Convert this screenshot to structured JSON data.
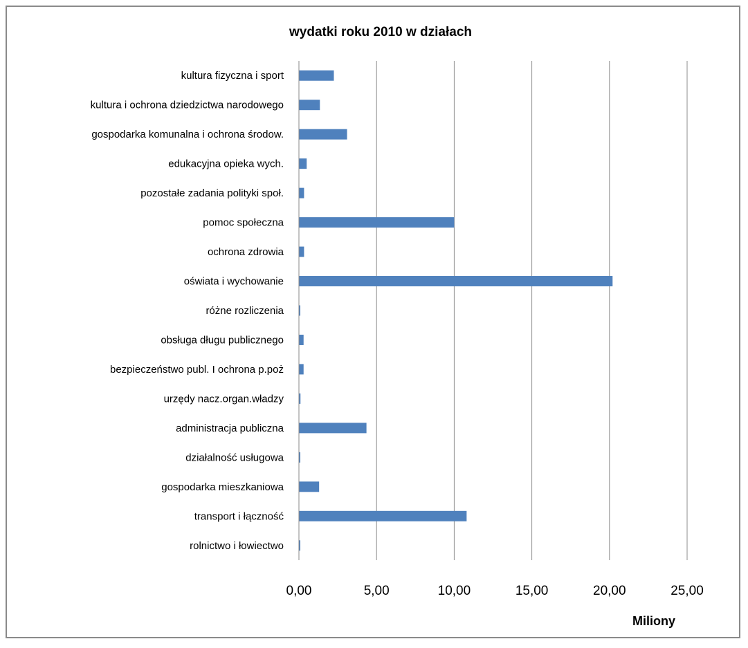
{
  "chart_data": {
    "type": "bar",
    "orientation": "horizontal",
    "title": "wydatki roku 2010 w działach",
    "xlabel": "Miliony",
    "ylabel": "",
    "xlim": [
      0,
      25
    ],
    "xticks": [
      "0,00",
      "5,00",
      "10,00",
      "15,00",
      "20,00",
      "25,00"
    ],
    "grid": "vertical",
    "legend": "none",
    "bar_color": "#4f81bd",
    "categories": [
      "kultura fizyczna i sport",
      "kultura i ochrona dziedzictwa narodowego",
      "gospodarka komunalna i ochrona środow.",
      "edukacyjna opieka wych.",
      "pozostałe zadania polityki społ.",
      "pomoc społeczna",
      "ochrona zdrowia",
      "oświata i wychowanie",
      "różne rozliczenia",
      "obsługa długu publicznego",
      "bezpieczeństwo publ. I ochrona p.poż",
      "urzędy nacz.organ.władzy",
      "administracja publiczna",
      "działalność usługowa",
      "gospodarka mieszkaniowa",
      "transport i łączność",
      "rolnictwo i łowiectwo"
    ],
    "values": [
      2.25,
      1.35,
      3.1,
      0.5,
      0.33,
      10.0,
      0.33,
      20.2,
      0.07,
      0.3,
      0.3,
      0.1,
      4.35,
      0.07,
      1.3,
      10.8,
      0.07
    ]
  }
}
